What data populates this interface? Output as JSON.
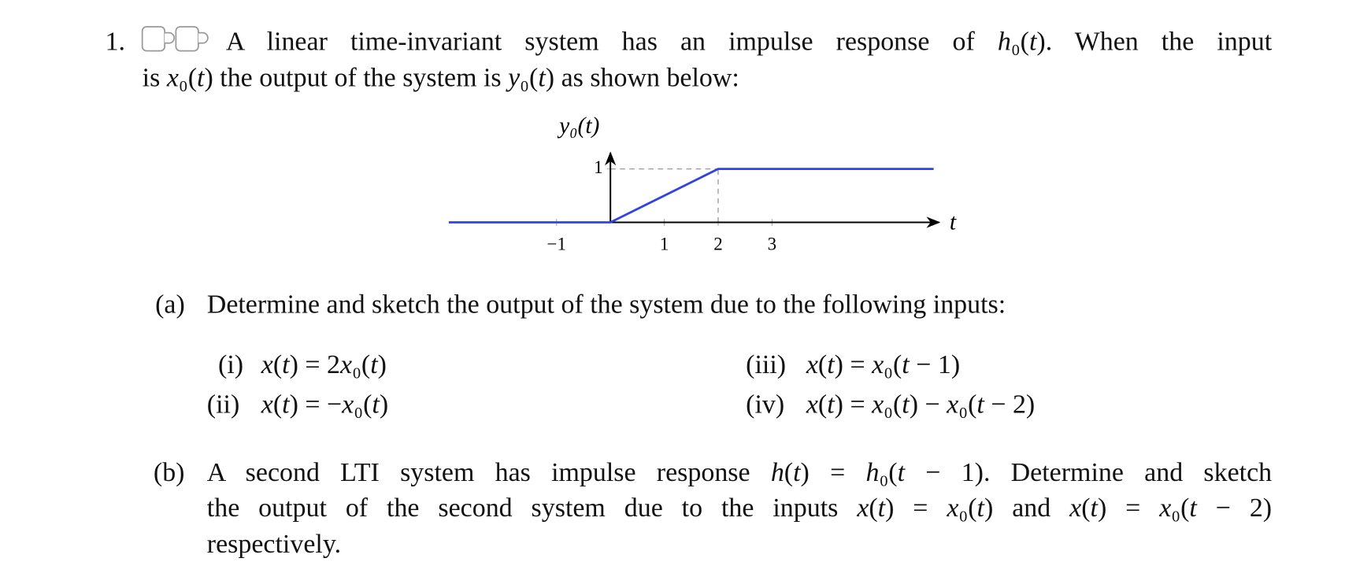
{
  "problem": {
    "number": "1.",
    "intro": [
      [
        "A linear time-invariant system has an impulse response of ",
        "h₀(t)",
        ". When the input"
      ],
      [
        "is ",
        "x₀(t)",
        " the output of the system is ",
        "y₀(t)",
        " as shown below:"
      ]
    ],
    "chart_data": {
      "type": "line",
      "ylabel": "y₀(t)",
      "xlabel": "t",
      "x": [
        -3,
        0,
        2,
        6
      ],
      "values": [
        0,
        0,
        1,
        1
      ],
      "color": "#2f44e0",
      "xlim": [
        -3,
        6.1
      ],
      "ylim": [
        0,
        1.3
      ],
      "xticks": [
        {
          "value": -1,
          "label": "−1"
        },
        1,
        2,
        3
      ],
      "yticks": [
        1
      ],
      "dashed_guides": true
    },
    "part_a": {
      "label": "(a)",
      "text": "Determine and sketch the output of the system due to the following inputs:",
      "items": [
        {
          "label": "(i)",
          "math": "x(t) = 2x₀(t)"
        },
        {
          "label": "(ii)",
          "math": "x(t) = −x₀(t)"
        },
        {
          "label": "(iii)",
          "math": "x(t) = x₀(t − 1)"
        },
        {
          "label": "(iv)",
          "math": "x(t) = x₀(t) − x₀(t − 2)"
        }
      ]
    },
    "part_b": {
      "label": "(b)",
      "lines": [
        [
          "A second LTI system has impulse response ",
          "h(t) = h₀(t − 1)",
          ". Determine and sketch"
        ],
        [
          "the output of the second system due to the inputs ",
          "x(t) = x₀(t)",
          " and ",
          "x(t) = x₀(t − 2)"
        ],
        [
          "respectively."
        ]
      ]
    }
  }
}
